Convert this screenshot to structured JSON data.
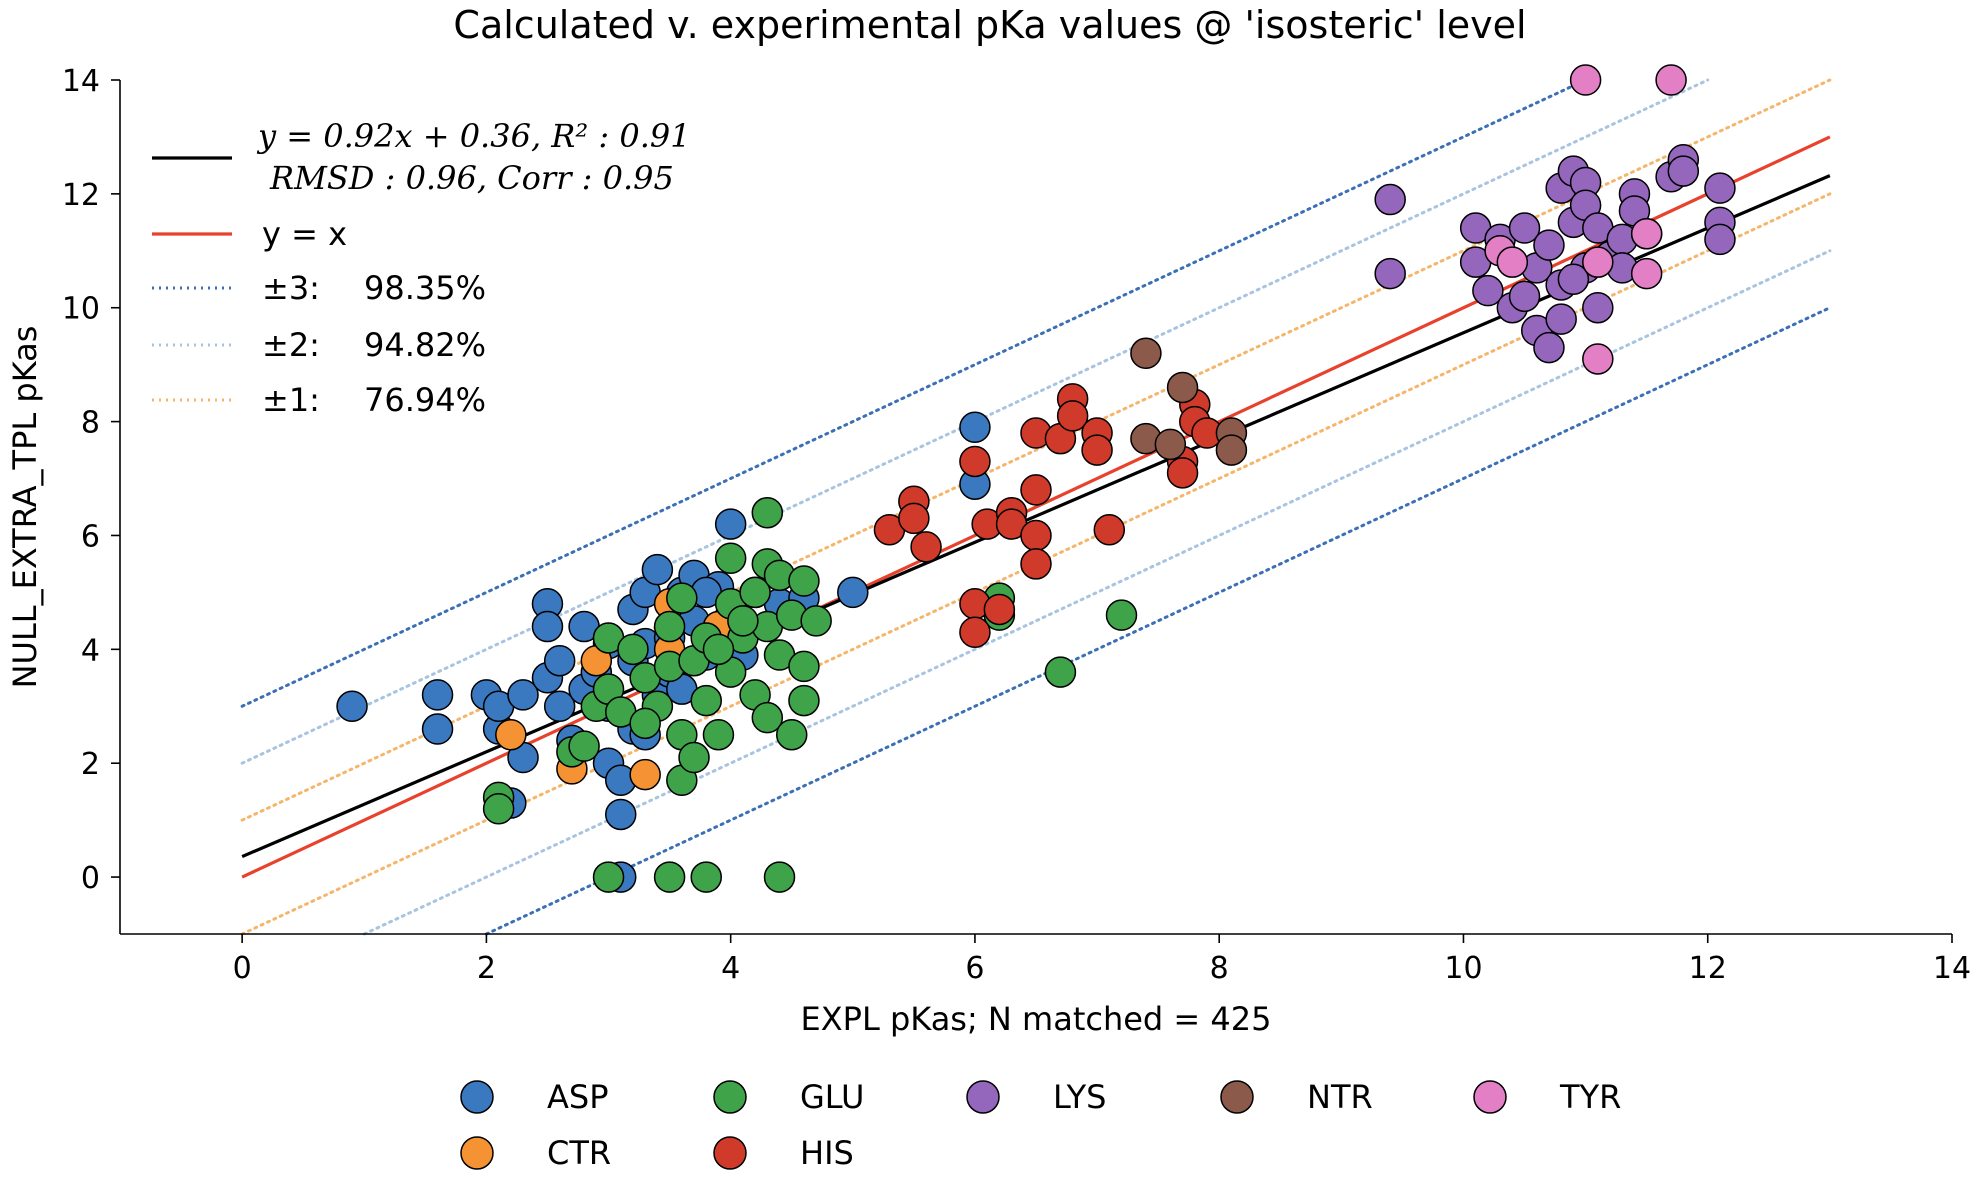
{
  "chart_data": {
    "type": "scatter",
    "title": "Calculated v. experimental pKa values @ 'isosteric' level",
    "xlabel": "EXPL pKas; N matched = 425",
    "ylabel": "NULL_EXTRA_TPL pKas",
    "xlim": [
      -1,
      14
    ],
    "ylim": [
      -1,
      14
    ],
    "xticks": [
      "0",
      "2",
      "4",
      "6",
      "8",
      "10",
      "12",
      "14"
    ],
    "yticks": [
      "0",
      "2",
      "4",
      "6",
      "8",
      "10",
      "12",
      "14"
    ],
    "legend_location": "top-left",
    "legend": {
      "fit": {
        "line1": "y = 0.92x + 0.36, R² : 0.91",
        "line2": "RMSD : 0.96, Corr : 0.95",
        "color": "#000000"
      },
      "identity": {
        "label": "y = x",
        "color": "#e8412c"
      },
      "bands": [
        {
          "label": "±3:",
          "value": "98.35%",
          "offset": 3,
          "color": "#3b6fb6"
        },
        {
          "label": "±2:",
          "value": "94.82%",
          "offset": 2,
          "color": "#a8c4e0"
        },
        {
          "label": "±1:",
          "value": "76.94%",
          "offset": 1,
          "color": "#f5b56b"
        }
      ]
    },
    "fit_line": {
      "slope": 0.92,
      "intercept": 0.36,
      "x_range": [
        0,
        13
      ]
    },
    "identity_line": {
      "x_range": [
        0,
        13
      ]
    },
    "band_x_range": [
      0,
      13
    ],
    "categories_legend": [
      {
        "name": "ASP",
        "color": "#3a78c0"
      },
      {
        "name": "GLU",
        "color": "#3fa34a"
      },
      {
        "name": "LYS",
        "color": "#9467bd"
      },
      {
        "name": "NTR",
        "color": "#8c5a4b"
      },
      {
        "name": "TYR",
        "color": "#e27fc5"
      },
      {
        "name": "CTR",
        "color": "#f59233"
      },
      {
        "name": "HIS",
        "color": "#d03a2a"
      }
    ],
    "series": [
      {
        "name": "ASP",
        "color": "#3a78c0",
        "points": [
          [
            0.9,
            3.0
          ],
          [
            1.6,
            3.2
          ],
          [
            1.6,
            2.6
          ],
          [
            2.0,
            3.2
          ],
          [
            2.1,
            2.6
          ],
          [
            2.1,
            3.0
          ],
          [
            2.2,
            1.3
          ],
          [
            2.3,
            2.1
          ],
          [
            2.3,
            3.2
          ],
          [
            2.5,
            4.8
          ],
          [
            2.5,
            4.4
          ],
          [
            2.5,
            3.5
          ],
          [
            2.6,
            3.8
          ],
          [
            2.6,
            3.0
          ],
          [
            2.8,
            4.4
          ],
          [
            2.8,
            3.3
          ],
          [
            2.9,
            3.6
          ],
          [
            3.0,
            3.0
          ],
          [
            3.0,
            2.0
          ],
          [
            3.1,
            1.7
          ],
          [
            3.1,
            1.1
          ],
          [
            3.2,
            4.7
          ],
          [
            3.2,
            3.8
          ],
          [
            3.2,
            2.6
          ],
          [
            3.3,
            5.0
          ],
          [
            3.3,
            4.1
          ],
          [
            3.4,
            5.4
          ],
          [
            3.4,
            3.2
          ],
          [
            3.5,
            4.2
          ],
          [
            3.5,
            3.6
          ],
          [
            3.6,
            5.0
          ],
          [
            3.7,
            5.3
          ],
          [
            3.7,
            4.5
          ],
          [
            3.8,
            3.9
          ],
          [
            3.9,
            5.1
          ],
          [
            4.0,
            6.2
          ],
          [
            4.0,
            4.6
          ],
          [
            4.1,
            3.9
          ],
          [
            4.2,
            5.0
          ],
          [
            4.4,
            4.8
          ],
          [
            4.6,
            4.9
          ],
          [
            5.0,
            5.0
          ],
          [
            6.0,
            7.9
          ],
          [
            6.0,
            6.9
          ],
          [
            3.0,
            4.1
          ],
          [
            2.7,
            2.4
          ],
          [
            3.6,
            3.3
          ],
          [
            3.8,
            5.0
          ],
          [
            3.1,
            0.0
          ],
          [
            3.3,
            2.5
          ]
        ]
      },
      {
        "name": "CTR",
        "color": "#f59233",
        "points": [
          [
            2.2,
            2.5
          ],
          [
            2.7,
            1.9
          ],
          [
            2.9,
            3.8
          ],
          [
            3.3,
            1.8
          ],
          [
            3.5,
            4.0
          ],
          [
            3.5,
            4.8
          ],
          [
            3.9,
            4.4
          ]
        ]
      },
      {
        "name": "GLU",
        "color": "#3fa34a",
        "points": [
          [
            2.1,
            1.4
          ],
          [
            2.1,
            1.2
          ],
          [
            2.7,
            2.2
          ],
          [
            2.8,
            2.3
          ],
          [
            2.9,
            3.0
          ],
          [
            3.0,
            4.2
          ],
          [
            3.0,
            3.3
          ],
          [
            3.1,
            2.9
          ],
          [
            3.2,
            4.0
          ],
          [
            3.3,
            3.5
          ],
          [
            3.4,
            3.0
          ],
          [
            3.5,
            4.4
          ],
          [
            3.5,
            3.7
          ],
          [
            3.6,
            4.9
          ],
          [
            3.6,
            2.5
          ],
          [
            3.6,
            1.7
          ],
          [
            3.7,
            3.8
          ],
          [
            3.7,
            2.1
          ],
          [
            3.8,
            4.2
          ],
          [
            3.8,
            3.1
          ],
          [
            3.9,
            2.5
          ],
          [
            4.0,
            5.6
          ],
          [
            4.0,
            4.8
          ],
          [
            4.0,
            3.6
          ],
          [
            4.1,
            4.2
          ],
          [
            4.2,
            5.0
          ],
          [
            4.2,
            3.2
          ],
          [
            4.3,
            6.4
          ],
          [
            4.3,
            5.5
          ],
          [
            4.3,
            4.4
          ],
          [
            4.3,
            2.8
          ],
          [
            4.4,
            5.3
          ],
          [
            4.4,
            3.9
          ],
          [
            4.5,
            4.6
          ],
          [
            4.5,
            2.5
          ],
          [
            4.6,
            5.2
          ],
          [
            4.6,
            3.7
          ],
          [
            4.6,
            3.1
          ],
          [
            4.7,
            4.5
          ],
          [
            3.0,
            0.0
          ],
          [
            3.5,
            0.0
          ],
          [
            3.8,
            0.0
          ],
          [
            4.4,
            0.0
          ],
          [
            6.2,
            4.9
          ],
          [
            6.2,
            4.6
          ],
          [
            6.7,
            3.6
          ],
          [
            7.2,
            4.6
          ],
          [
            3.9,
            4.0
          ],
          [
            4.1,
            4.5
          ],
          [
            3.3,
            2.7
          ]
        ]
      },
      {
        "name": "HIS",
        "color": "#d03a2a",
        "points": [
          [
            5.3,
            6.1
          ],
          [
            5.5,
            6.6
          ],
          [
            5.5,
            6.3
          ],
          [
            5.6,
            5.8
          ],
          [
            6.0,
            7.3
          ],
          [
            6.0,
            4.8
          ],
          [
            6.0,
            4.3
          ],
          [
            6.1,
            6.2
          ],
          [
            6.2,
            4.7
          ],
          [
            6.3,
            6.4
          ],
          [
            6.3,
            6.2
          ],
          [
            6.5,
            7.8
          ],
          [
            6.5,
            6.8
          ],
          [
            6.5,
            6.0
          ],
          [
            6.5,
            5.5
          ],
          [
            6.7,
            7.7
          ],
          [
            6.8,
            8.4
          ],
          [
            6.8,
            8.1
          ],
          [
            7.0,
            7.8
          ],
          [
            7.0,
            7.5
          ],
          [
            7.1,
            6.1
          ],
          [
            7.7,
            7.3
          ],
          [
            7.7,
            7.1
          ],
          [
            7.8,
            8.3
          ],
          [
            7.8,
            8.0
          ],
          [
            7.9,
            7.8
          ]
        ]
      },
      {
        "name": "NTR",
        "color": "#8c5a4b",
        "points": [
          [
            7.4,
            9.2
          ],
          [
            7.4,
            7.7
          ],
          [
            7.6,
            7.6
          ],
          [
            7.7,
            8.6
          ],
          [
            8.1,
            7.8
          ],
          [
            8.1,
            7.5
          ]
        ]
      },
      {
        "name": "LYS",
        "color": "#9467bd",
        "points": [
          [
            9.4,
            11.9
          ],
          [
            9.4,
            10.6
          ],
          [
            10.1,
            11.4
          ],
          [
            10.1,
            10.8
          ],
          [
            10.2,
            10.3
          ],
          [
            10.3,
            11.2
          ],
          [
            10.4,
            10.0
          ],
          [
            10.5,
            11.4
          ],
          [
            10.6,
            10.7
          ],
          [
            10.6,
            9.6
          ],
          [
            10.7,
            11.1
          ],
          [
            10.7,
            9.3
          ],
          [
            10.8,
            12.1
          ],
          [
            10.8,
            10.4
          ],
          [
            10.8,
            9.8
          ],
          [
            10.9,
            12.4
          ],
          [
            10.9,
            11.5
          ],
          [
            11.0,
            12.2
          ],
          [
            11.0,
            11.8
          ],
          [
            11.0,
            10.7
          ],
          [
            11.1,
            11.4
          ],
          [
            11.1,
            10.0
          ],
          [
            11.2,
            10.9
          ],
          [
            11.3,
            11.2
          ],
          [
            11.3,
            10.7
          ],
          [
            11.4,
            12.0
          ],
          [
            11.4,
            11.7
          ],
          [
            11.5,
            11.3
          ],
          [
            11.7,
            12.3
          ],
          [
            11.8,
            12.6
          ],
          [
            11.8,
            12.4
          ],
          [
            12.1,
            12.1
          ],
          [
            12.1,
            11.5
          ],
          [
            12.1,
            11.2
          ],
          [
            10.5,
            10.2
          ],
          [
            10.9,
            10.5
          ]
        ]
      },
      {
        "name": "TYR",
        "color": "#e27fc5",
        "points": [
          [
            10.3,
            11.0
          ],
          [
            10.4,
            10.8
          ],
          [
            11.0,
            14.0
          ],
          [
            11.1,
            10.8
          ],
          [
            11.1,
            9.1
          ],
          [
            11.5,
            11.3
          ],
          [
            11.5,
            10.6
          ],
          [
            11.7,
            14.0
          ]
        ]
      }
    ]
  }
}
